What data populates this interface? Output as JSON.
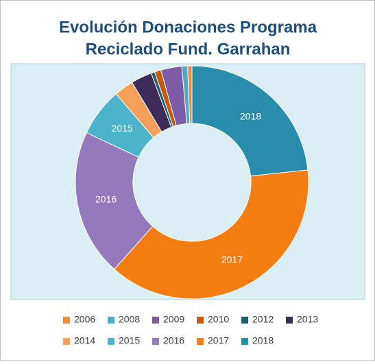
{
  "chart_data": {
    "type": "donut",
    "title": [
      "Evolución Donaciones Programa",
      "Reciclado Fund. Garrahan"
    ],
    "categories": [
      "2006",
      "2008",
      "2009",
      "2010",
      "2012",
      "2013",
      "2014",
      "2015",
      "2016",
      "2017",
      "2018"
    ],
    "values": [
      0.6,
      0.8,
      2.9,
      0.9,
      0.5,
      2.9,
      2.7,
      6.7,
      20.4,
      38.3,
      23.3
    ],
    "colors": [
      "#f08c3a",
      "#4bacc6",
      "#7d5ba6",
      "#c55a11",
      "#1f5f6e",
      "#3d2c57",
      "#f6a05a",
      "#4bb3cc",
      "#9579bd",
      "#f57c10",
      "#2a8cab"
    ],
    "legend": "bottom"
  }
}
